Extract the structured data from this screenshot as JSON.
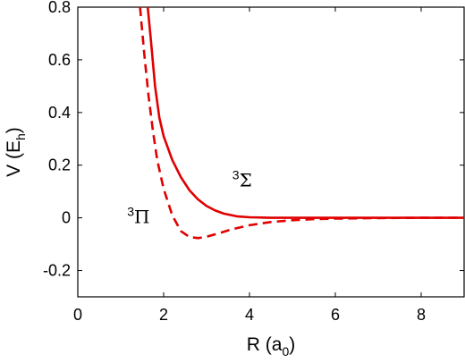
{
  "chart_data": {
    "type": "line",
    "xlabel": "R (a",
    "xlabel_sub": "0",
    "xlabel_close": ")",
    "ylabel": "V (E",
    "ylabel_sub": "h",
    "ylabel_close": ")",
    "xlim": [
      0,
      9
    ],
    "ylim": [
      -0.3,
      0.8
    ],
    "xticks": [
      0,
      2,
      4,
      6,
      8
    ],
    "xtick_labels": [
      "0",
      "2",
      "4",
      "6",
      "8"
    ],
    "yticks": [
      -0.2,
      0,
      0.2,
      0.4,
      0.6,
      0.8
    ],
    "ytick_labels": [
      "-0.2",
      "0",
      "0.2",
      "0.4",
      "0.6",
      "0.8"
    ],
    "grid": false,
    "color": "#e00000",
    "series": [
      {
        "name": "3Σ",
        "style": "solid",
        "x": [
          1.63,
          1.7,
          1.8,
          1.9,
          2.0,
          2.2,
          2.4,
          2.6,
          2.8,
          3.0,
          3.2,
          3.4,
          3.7,
          4.0,
          4.5,
          5.0,
          6.0,
          7.0,
          8.0,
          9.0
        ],
        "y": [
          0.8,
          0.68,
          0.5,
          0.38,
          0.31,
          0.22,
          0.155,
          0.105,
          0.07,
          0.045,
          0.028,
          0.016,
          0.006,
          0.002,
          0.0,
          0.0,
          0.0,
          0.0,
          0.0,
          0.0
        ]
      },
      {
        "name": "3Π",
        "style": "dashed",
        "x": [
          1.45,
          1.55,
          1.65,
          1.75,
          1.85,
          2.0,
          2.2,
          2.4,
          2.6,
          2.8,
          3.0,
          3.3,
          3.6,
          4.0,
          4.5,
          5.0,
          5.5,
          6.0,
          7.0,
          8.0,
          9.0
        ],
        "y": [
          0.8,
          0.62,
          0.46,
          0.33,
          0.22,
          0.11,
          0.01,
          -0.05,
          -0.073,
          -0.077,
          -0.072,
          -0.058,
          -0.043,
          -0.028,
          -0.016,
          -0.009,
          -0.005,
          -0.003,
          -0.001,
          0.0,
          0.0
        ]
      }
    ],
    "annotations": [
      {
        "sup": "3",
        "text": "Σ",
        "x": 3.6,
        "y": 0.12
      },
      {
        "sup": "3",
        "text": "Π",
        "x": 1.15,
        "y": -0.02
      }
    ]
  }
}
